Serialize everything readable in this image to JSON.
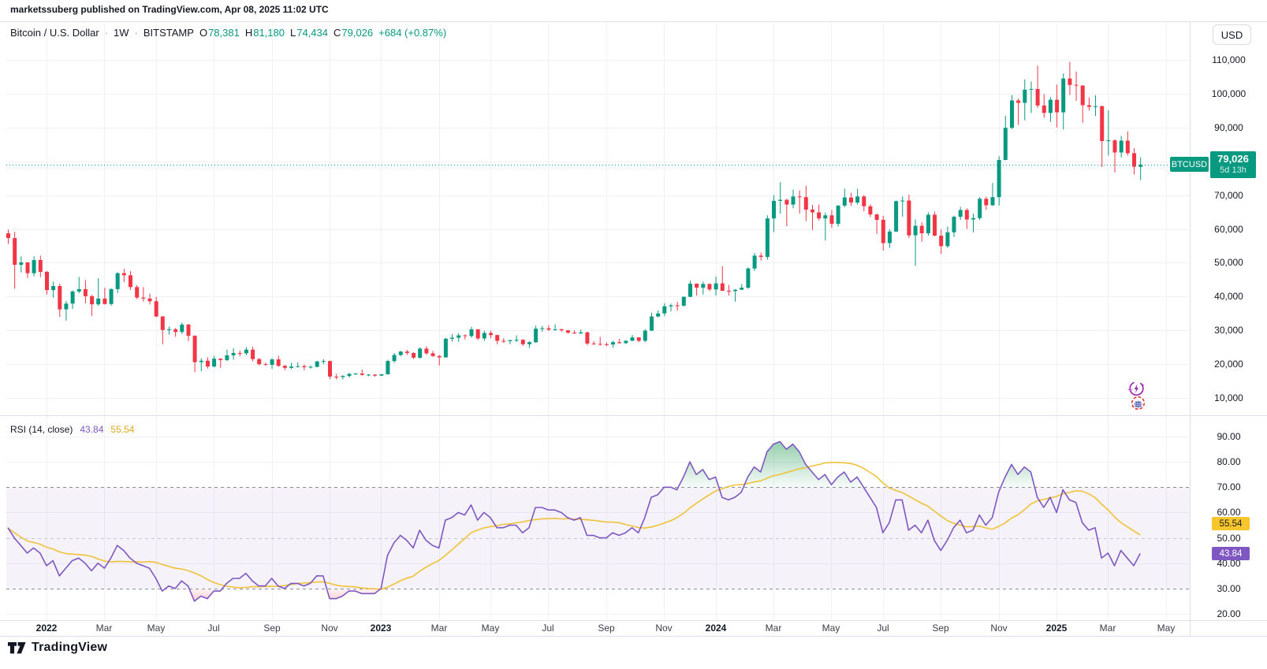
{
  "attribution": "marketssuberg published on TradingView.com, Apr 08, 2025 11:02 UTC",
  "toolbar": {
    "currency_label": "USD"
  },
  "legend": {
    "symbol": "Bitcoin / U.S. Dollar",
    "separator": "·",
    "interval": "1W",
    "exchange": "BITSTAMP",
    "ohlc": [
      {
        "label": "O",
        "value": "78,381"
      },
      {
        "label": "H",
        "value": "81,180"
      },
      {
        "label": "L",
        "value": "74,434"
      },
      {
        "label": "C",
        "value": "79,026"
      }
    ],
    "change": "+684 (+0.87%)"
  },
  "price_scale_tag": {
    "symbol": "BTCUSD",
    "price": "79,026",
    "countdown": "5d 13h"
  },
  "rsi_pane": {
    "legend_title": "RSI (14, close)",
    "rsi_value": "43.84",
    "ma_value": "55.54",
    "rsi_tag": "43.84",
    "ma_tag": "55.54"
  },
  "watermark": "TradingView",
  "colors": {
    "up": "#089981",
    "down": "#F23645",
    "rsi_line": "#7E57C2",
    "rsi_ma_line": "#F0C23A",
    "rsi_ma_text": "#DFA81C",
    "ma_tag_bg": "#F7C52C",
    "grid": "#F0F2F5",
    "band_fill": "rgba(126,87,194,0.08)"
  },
  "chart_data": {
    "type": "candlestick",
    "title": "Bitcoin / U.S. Dollar, 1W, BITSTAMP",
    "units": "USD, candle values in thousands",
    "last_price": 79026,
    "price_axis": {
      "ticks_k": [
        110,
        100,
        90,
        80,
        70,
        60,
        50,
        40,
        30,
        20,
        10
      ],
      "labels": [
        "110,000",
        "100,000",
        "90,000",
        "80,000",
        "70,000",
        "60,000",
        "50,000",
        "40,000",
        "30,000",
        "20,000",
        "10,000"
      ],
      "range_k": [
        10,
        110
      ]
    },
    "time_ticks": [
      {
        "label": "2022",
        "week": 6,
        "year": true
      },
      {
        "label": "Mar",
        "week": 15
      },
      {
        "label": "May",
        "week": 23
      },
      {
        "label": "Jul",
        "week": 32
      },
      {
        "label": "Sep",
        "week": 41
      },
      {
        "label": "Nov",
        "week": 50
      },
      {
        "label": "2023",
        "week": 58,
        "year": true
      },
      {
        "label": "Mar",
        "week": 67
      },
      {
        "label": "May",
        "week": 75
      },
      {
        "label": "Jul",
        "week": 84
      },
      {
        "label": "Sep",
        "week": 93
      },
      {
        "label": "Nov",
        "week": 102
      },
      {
        "label": "2024",
        "week": 110,
        "year": true
      },
      {
        "label": "Mar",
        "week": 119
      },
      {
        "label": "May",
        "week": 128
      },
      {
        "label": "Jul",
        "week": 136
      },
      {
        "label": "Sep",
        "week": 145
      },
      {
        "label": "Nov",
        "week": 154
      },
      {
        "label": "2025",
        "week": 163,
        "year": true
      },
      {
        "label": "Mar",
        "week": 171
      },
      {
        "label": "May",
        "week": 180
      }
    ],
    "candles_ohlc_k": [
      [
        58.7,
        59.8,
        55.6,
        57.3
      ],
      [
        57.3,
        59.1,
        42.3,
        49.4
      ],
      [
        49.4,
        51.9,
        47.1,
        50.1
      ],
      [
        50.1,
        50.2,
        45.5,
        46.9
      ],
      [
        46.9,
        51.9,
        46.0,
        50.8
      ],
      [
        50.8,
        52.1,
        45.7,
        47.3
      ],
      [
        47.3,
        47.6,
        40.6,
        41.9
      ],
      [
        41.9,
        44.4,
        39.7,
        43.1
      ],
      [
        43.1,
        43.8,
        34.0,
        36.2
      ],
      [
        36.2,
        38.7,
        32.9,
        37.9
      ],
      [
        37.9,
        41.8,
        36.3,
        41.5
      ],
      [
        41.5,
        45.8,
        41.0,
        42.2
      ],
      [
        42.2,
        44.9,
        38.0,
        40.1
      ],
      [
        40.1,
        40.5,
        34.3,
        37.7
      ],
      [
        37.7,
        45.4,
        37.2,
        39.4
      ],
      [
        39.4,
        42.6,
        37.6,
        37.8
      ],
      [
        37.8,
        42.4,
        37.3,
        42.2
      ],
      [
        42.2,
        47.2,
        41.0,
        46.9
      ],
      [
        46.9,
        48.2,
        44.3,
        46.3
      ],
      [
        46.3,
        47.5,
        41.9,
        42.8
      ],
      [
        42.8,
        43.4,
        39.2,
        39.7
      ],
      [
        39.7,
        42.8,
        38.5,
        39.4
      ],
      [
        39.4,
        40.8,
        37.7,
        38.6
      ],
      [
        38.6,
        39.9,
        33.9,
        34.1
      ],
      [
        34.1,
        34.2,
        25.9,
        30.1
      ],
      [
        30.1,
        31.1,
        28.7,
        30.3
      ],
      [
        30.3,
        30.7,
        28.1,
        29.5
      ],
      [
        29.5,
        32.3,
        28.9,
        31.7
      ],
      [
        31.7,
        31.9,
        26.8,
        28.4
      ],
      [
        28.4,
        28.5,
        17.6,
        20.6
      ],
      [
        20.6,
        21.7,
        17.9,
        21.0
      ],
      [
        21.0,
        22.0,
        18.7,
        19.3
      ],
      [
        19.3,
        22.5,
        19.0,
        21.6
      ],
      [
        21.6,
        21.7,
        18.9,
        21.2
      ],
      [
        21.2,
        24.3,
        20.9,
        22.6
      ],
      [
        22.6,
        24.7,
        21.3,
        23.3
      ],
      [
        23.3,
        24.0,
        22.3,
        23.2
      ],
      [
        23.2,
        25.0,
        22.6,
        24.3
      ],
      [
        24.3,
        25.2,
        20.8,
        21.5
      ],
      [
        21.5,
        21.8,
        19.6,
        20.0
      ],
      [
        20.0,
        20.4,
        19.5,
        19.8
      ],
      [
        19.8,
        21.7,
        18.6,
        21.4
      ],
      [
        21.4,
        22.5,
        19.2,
        19.5
      ],
      [
        19.5,
        19.7,
        18.2,
        18.9
      ],
      [
        18.9,
        20.4,
        18.5,
        19.3
      ],
      [
        19.3,
        20.5,
        19.0,
        19.4
      ],
      [
        19.4,
        19.9,
        18.2,
        19.1
      ],
      [
        19.1,
        19.6,
        18.7,
        19.2
      ],
      [
        19.2,
        21.0,
        19.1,
        20.8
      ],
      [
        20.8,
        21.5,
        20.0,
        20.9
      ],
      [
        20.9,
        21.0,
        15.6,
        16.3
      ],
      [
        16.3,
        17.1,
        15.5,
        16.2
      ],
      [
        16.2,
        16.7,
        15.5,
        16.5
      ],
      [
        16.5,
        17.4,
        16.0,
        17.1
      ],
      [
        17.1,
        17.4,
        16.8,
        17.2
      ],
      [
        17.2,
        18.4,
        16.6,
        16.8
      ],
      [
        16.8,
        17.0,
        16.4,
        16.9
      ],
      [
        16.9,
        17.0,
        16.3,
        16.6
      ],
      [
        16.6,
        17.0,
        16.5,
        17.0
      ],
      [
        17.0,
        21.3,
        16.9,
        20.9
      ],
      [
        20.9,
        23.3,
        20.4,
        22.7
      ],
      [
        22.7,
        23.9,
        22.3,
        23.7
      ],
      [
        23.7,
        24.2,
        22.7,
        23.3
      ],
      [
        23.3,
        23.5,
        21.5,
        21.9
      ],
      [
        21.9,
        25.0,
        21.6,
        24.6
      ],
      [
        24.6,
        25.3,
        22.8,
        23.2
      ],
      [
        23.2,
        23.9,
        22.1,
        22.4
      ],
      [
        22.4,
        22.7,
        19.6,
        22.0
      ],
      [
        22.0,
        27.8,
        21.9,
        27.5
      ],
      [
        27.5,
        28.9,
        26.7,
        27.8
      ],
      [
        27.8,
        29.2,
        26.6,
        28.5
      ],
      [
        28.5,
        28.8,
        27.3,
        28.3
      ],
      [
        28.3,
        31.0,
        27.8,
        30.3
      ],
      [
        30.3,
        30.4,
        27.1,
        27.6
      ],
      [
        27.6,
        29.9,
        26.9,
        29.2
      ],
      [
        29.2,
        29.9,
        27.7,
        28.6
      ],
      [
        28.6,
        28.7,
        25.9,
        26.9
      ],
      [
        26.9,
        27.7,
        26.3,
        26.8
      ],
      [
        26.8,
        27.1,
        25.9,
        27.1
      ],
      [
        27.1,
        28.5,
        26.5,
        27.2
      ],
      [
        27.2,
        27.4,
        25.4,
        25.9
      ],
      [
        25.9,
        26.8,
        24.8,
        26.5
      ],
      [
        26.5,
        31.4,
        26.3,
        30.5
      ],
      [
        30.5,
        31.3,
        29.6,
        30.6
      ],
      [
        30.6,
        31.5,
        29.8,
        30.2
      ],
      [
        30.2,
        31.8,
        29.9,
        30.3
      ],
      [
        30.3,
        30.5,
        29.6,
        30.0
      ],
      [
        30.0,
        30.1,
        29.0,
        29.3
      ],
      [
        29.3,
        30.0,
        28.9,
        29.1
      ],
      [
        29.1,
        30.2,
        28.9,
        29.4
      ],
      [
        29.4,
        29.6,
        25.6,
        26.1
      ],
      [
        26.1,
        26.8,
        25.7,
        26.0
      ],
      [
        26.0,
        28.1,
        25.5,
        25.9
      ],
      [
        25.9,
        26.4,
        25.3,
        25.8
      ],
      [
        25.8,
        26.9,
        24.9,
        26.5
      ],
      [
        26.5,
        27.5,
        26.1,
        26.2
      ],
      [
        26.2,
        27.1,
        26.0,
        26.9
      ],
      [
        26.9,
        28.6,
        26.8,
        27.9
      ],
      [
        27.9,
        28.0,
        26.5,
        26.9
      ],
      [
        26.9,
        30.3,
        26.5,
        29.9
      ],
      [
        29.9,
        35.2,
        29.8,
        34.1
      ],
      [
        34.1,
        35.9,
        33.9,
        35.0
      ],
      [
        35.0,
        38.0,
        34.2,
        37.1
      ],
      [
        37.1,
        37.9,
        35.6,
        37.4
      ],
      [
        37.4,
        38.4,
        35.8,
        37.3
      ],
      [
        37.3,
        40.0,
        37.0,
        39.9
      ],
      [
        39.9,
        44.7,
        39.8,
        43.8
      ],
      [
        43.8,
        43.9,
        40.3,
        42.6
      ],
      [
        42.6,
        44.4,
        40.6,
        43.7
      ],
      [
        43.7,
        43.9,
        41.6,
        42.1
      ],
      [
        42.1,
        45.9,
        40.3,
        43.9
      ],
      [
        43.9,
        49.0,
        41.6,
        41.7
      ],
      [
        41.7,
        43.4,
        40.3,
        41.6
      ],
      [
        41.6,
        42.2,
        38.5,
        42.0
      ],
      [
        42.0,
        43.7,
        41.9,
        42.6
      ],
      [
        42.6,
        48.6,
        42.3,
        48.3
      ],
      [
        48.3,
        52.9,
        47.6,
        52.1
      ],
      [
        52.1,
        53.0,
        50.6,
        51.7
      ],
      [
        51.7,
        64.0,
        50.9,
        63.1
      ],
      [
        63.1,
        70.0,
        59.1,
        68.3
      ],
      [
        68.3,
        73.8,
        64.5,
        68.6
      ],
      [
        68.6,
        68.9,
        60.8,
        67.2
      ],
      [
        67.2,
        71.6,
        66.1,
        69.6
      ],
      [
        69.6,
        71.4,
        64.6,
        69.4
      ],
      [
        69.4,
        72.8,
        62.3,
        65.7
      ],
      [
        65.7,
        67.1,
        59.7,
        64.9
      ],
      [
        64.9,
        67.2,
        62.5,
        63.1
      ],
      [
        63.1,
        64.8,
        56.6,
        64.0
      ],
      [
        64.0,
        65.6,
        60.3,
        61.5
      ],
      [
        61.5,
        67.0,
        60.7,
        66.9
      ],
      [
        66.9,
        71.9,
        66.4,
        69.3
      ],
      [
        69.3,
        70.7,
        66.8,
        67.8
      ],
      [
        67.8,
        71.9,
        67.2,
        69.6
      ],
      [
        69.6,
        70.0,
        65.2,
        66.7
      ],
      [
        66.7,
        67.3,
        63.5,
        64.3
      ],
      [
        64.3,
        64.5,
        58.5,
        62.7
      ],
      [
        62.7,
        63.9,
        53.6,
        55.8
      ],
      [
        55.8,
        59.9,
        54.4,
        59.2
      ],
      [
        59.2,
        68.4,
        59.1,
        68.2
      ],
      [
        68.2,
        69.6,
        63.6,
        68.4
      ],
      [
        68.4,
        70.1,
        57.3,
        58.1
      ],
      [
        58.1,
        62.8,
        49.1,
        60.9
      ],
      [
        60.9,
        61.9,
        56.2,
        58.7
      ],
      [
        58.7,
        64.9,
        58.0,
        64.2
      ],
      [
        64.2,
        65.1,
        57.9,
        58.0
      ],
      [
        58.0,
        59.9,
        52.6,
        54.9
      ],
      [
        54.9,
        60.7,
        54.4,
        59.0
      ],
      [
        59.0,
        63.9,
        57.6,
        63.6
      ],
      [
        63.6,
        66.5,
        62.7,
        65.6
      ],
      [
        65.6,
        66.1,
        60.0,
        62.8
      ],
      [
        62.8,
        64.5,
        59.0,
        63.2
      ],
      [
        63.2,
        69.4,
        62.6,
        68.9
      ],
      [
        68.9,
        69.5,
        65.6,
        67.0
      ],
      [
        67.0,
        73.6,
        66.8,
        69.4
      ],
      [
        69.4,
        81.5,
        66.9,
        80.4
      ],
      [
        80.4,
        93.5,
        80.3,
        89.9
      ],
      [
        89.9,
        99.6,
        89.5,
        98.0
      ],
      [
        98.0,
        98.6,
        90.8,
        97.3
      ],
      [
        97.3,
        104.2,
        92.1,
        101.2
      ],
      [
        101.2,
        103.6,
        94.3,
        101.4
      ],
      [
        101.4,
        108.3,
        95.8,
        96.5
      ],
      [
        96.5,
        99.9,
        92.9,
        94.3
      ],
      [
        94.3,
        99.0,
        91.6,
        98.2
      ],
      [
        98.2,
        102.7,
        90.0,
        94.5
      ],
      [
        94.5,
        106.0,
        89.4,
        104.5
      ],
      [
        104.5,
        109.4,
        99.6,
        102.6
      ],
      [
        102.6,
        106.5,
        97.9,
        102.4
      ],
      [
        102.4,
        102.5,
        91.4,
        96.6
      ],
      [
        96.6,
        98.9,
        95.0,
        96.1
      ],
      [
        96.1,
        99.5,
        93.4,
        96.3
      ],
      [
        96.3,
        96.5,
        78.3,
        86.0
      ],
      [
        86.0,
        95.1,
        81.7,
        86.2
      ],
      [
        86.2,
        86.5,
        76.7,
        82.6
      ],
      [
        82.6,
        87.5,
        81.2,
        86.1
      ],
      [
        86.1,
        88.8,
        81.7,
        82.4
      ],
      [
        82.4,
        83.9,
        76.1,
        78.4
      ],
      [
        78.38,
        81.18,
        74.43,
        79.03
      ]
    ],
    "indicator": {
      "name": "RSI",
      "params": "14, close",
      "tick_values": [
        90,
        80,
        70,
        60,
        50,
        40,
        30,
        20
      ],
      "tick_labels": [
        "90.00",
        "80.00",
        "70.00",
        "60.00",
        "50.00",
        "40.00",
        "30.00",
        "20.00"
      ],
      "levels": {
        "upper": 70,
        "middle": 50,
        "lower": 30
      },
      "ma_type": "SMA14",
      "last_rsi": 43.84,
      "last_ma": 55.54,
      "values": [
        54,
        50,
        47,
        44,
        46,
        44,
        39,
        41,
        35,
        38,
        41,
        42,
        40,
        37,
        40,
        38,
        42,
        47,
        45,
        42,
        40,
        39,
        38,
        34,
        29,
        31,
        30,
        33,
        31,
        25,
        27,
        26,
        29,
        29,
        32,
        34,
        34,
        36,
        33,
        31,
        31,
        34,
        31,
        30,
        32,
        32,
        31,
        32,
        35,
        35,
        26,
        26,
        27,
        29,
        29,
        28,
        28,
        28,
        30,
        43,
        48,
        51,
        49,
        46,
        53,
        49,
        47,
        46,
        57,
        58,
        60,
        59,
        63,
        57,
        60,
        58,
        54,
        54,
        55,
        55,
        52,
        54,
        62,
        62,
        61,
        61,
        60,
        58,
        57,
        58,
        51,
        51,
        50,
        50,
        52,
        51,
        52,
        54,
        52,
        58,
        66,
        67,
        70,
        70,
        69,
        74,
        80,
        75,
        77,
        73,
        74,
        66,
        65,
        66,
        68,
        74,
        78,
        76,
        84,
        87,
        88,
        85,
        87,
        84,
        79,
        76,
        73,
        75,
        71,
        74,
        76,
        72,
        74,
        70,
        66,
        62,
        52,
        56,
        65,
        65,
        53,
        55,
        52,
        57,
        49,
        45,
        49,
        54,
        57,
        52,
        53,
        59,
        55,
        58,
        68,
        74,
        79,
        75,
        78,
        76,
        66,
        62,
        66,
        60,
        69,
        65,
        64,
        56,
        53,
        54,
        42,
        44,
        39,
        45,
        42,
        39,
        43.84
      ]
    }
  }
}
